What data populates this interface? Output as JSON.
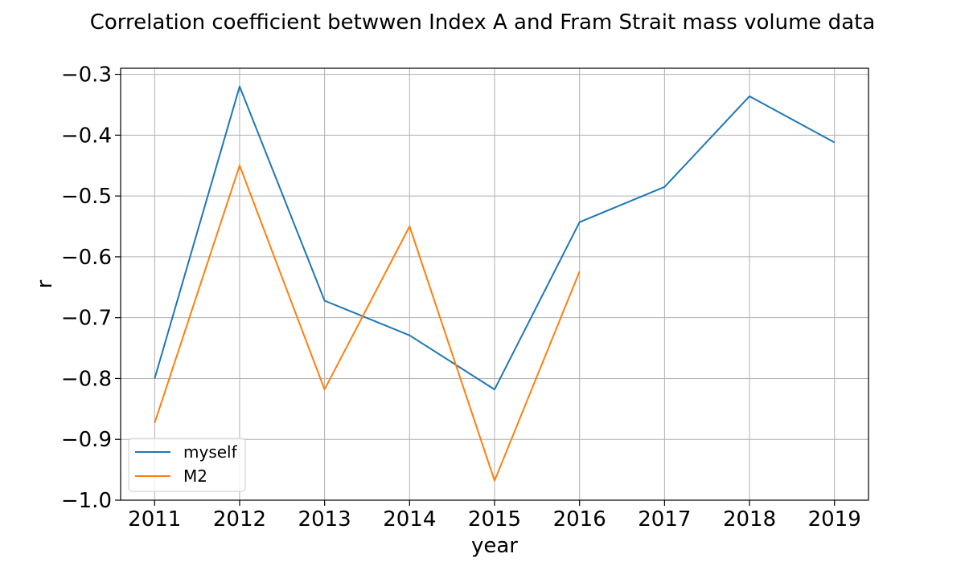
{
  "chart_data": {
    "type": "line",
    "title": "Correlation coefficient betwwen Index A and Fram Strait mass volume data",
    "xlabel": "year",
    "ylabel": "r",
    "x": [
      2011,
      2012,
      2013,
      2014,
      2015,
      2016,
      2017,
      2018,
      2019
    ],
    "x_tick_labels": [
      "2011",
      "2012",
      "2013",
      "2014",
      "2015",
      "2016",
      "2017",
      "2018",
      "2019"
    ],
    "xlim": [
      2010.6,
      2019.4
    ],
    "ylim": [
      -1.0,
      -0.29
    ],
    "y_ticks": [
      -1.0,
      -0.9,
      -0.8,
      -0.7,
      -0.6,
      -0.5,
      -0.4,
      -0.3
    ],
    "y_tick_labels": [
      "−1.0",
      "−0.9",
      "−0.8",
      "−0.7",
      "−0.6",
      "−0.5",
      "−0.4",
      "−0.3"
    ],
    "grid": true,
    "legend_position": "lower-left",
    "series": [
      {
        "name": "myself",
        "color": "#1f77b4",
        "x": [
          2011,
          2012,
          2013,
          2014,
          2015,
          2016,
          2017,
          2018,
          2019
        ],
        "values": [
          -0.8,
          -0.32,
          -0.672,
          -0.729,
          -0.818,
          -0.543,
          -0.485,
          -0.336,
          -0.412
        ]
      },
      {
        "name": "M2",
        "color": "#ff7f0e",
        "x": [
          2011,
          2012,
          2013,
          2014,
          2015,
          2016
        ],
        "values": [
          -0.873,
          -0.45,
          -0.818,
          -0.55,
          -0.968,
          -0.624
        ]
      }
    ]
  }
}
